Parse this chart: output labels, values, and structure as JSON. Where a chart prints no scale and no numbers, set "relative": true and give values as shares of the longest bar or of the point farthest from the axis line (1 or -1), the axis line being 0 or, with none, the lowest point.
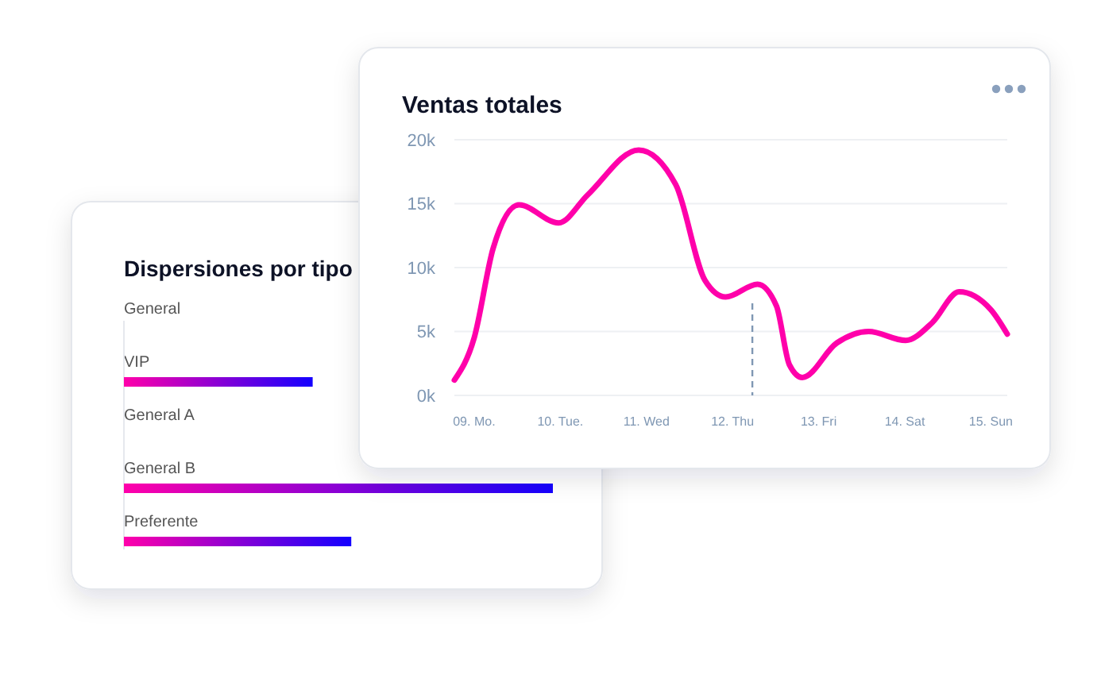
{
  "chart_data": [
    {
      "type": "bar",
      "title": "Dispersiones por tipo",
      "orientation": "horizontal",
      "relative": true,
      "categories": [
        "General",
        "VIP",
        "General A",
        "General B",
        "Preferente"
      ],
      "series": [
        {
          "color": "#1400ff",
          "values": [
            null,
            0.44,
            null,
            1,
            0.53
          ]
        }
      ]
    },
    {
      "type": "line",
      "title": "Ventas totales",
      "grid": "y",
      "marker": "none",
      "xlim": [
        8.77,
        15.19
      ],
      "xticks": [
        {
          "value": 9,
          "label": "09. Mo."
        },
        {
          "value": 10,
          "label": "10. Tue."
        },
        {
          "value": 11,
          "label": "11. Wed"
        },
        {
          "value": 12,
          "label": "12. Thu"
        },
        {
          "value": 13,
          "label": "13. Fri"
        },
        {
          "value": 14,
          "label": "14. Sat"
        },
        {
          "value": 15,
          "label": "15. Sun"
        }
      ],
      "ylim": [
        0,
        20
      ],
      "yticks": [
        {
          "value": 0,
          "label": "0k"
        },
        {
          "value": 5,
          "label": "5k"
        },
        {
          "value": 10,
          "label": "10k"
        },
        {
          "value": 15,
          "label": "15k"
        },
        {
          "value": 20,
          "label": "20k"
        }
      ],
      "ref_lines": [
        {
          "axis": "x",
          "value": 12.23,
          "color": "#7f97b3",
          "line_style": "dashed"
        }
      ],
      "series": [
        {
          "color": "#ff00aa",
          "x": [
            8.77,
            9,
            9.22,
            9.52,
            9.98,
            10.32,
            10.91,
            11.34,
            11.68,
            11.92,
            12.29,
            12.51,
            12.66,
            12.81,
            13.21,
            13.58,
            14.01,
            14.32,
            14.63,
            15.0,
            15.19
          ],
          "values": [
            1.2,
            4.5,
            11.5,
            14.9,
            13.5,
            15.7,
            19.2,
            16.5,
            9.0,
            7.7,
            8.7,
            7.0,
            2.4,
            1.4,
            4.1,
            5.0,
            4.3,
            5.7,
            8.1,
            6.7,
            4.8
          ]
        }
      ]
    }
  ]
}
